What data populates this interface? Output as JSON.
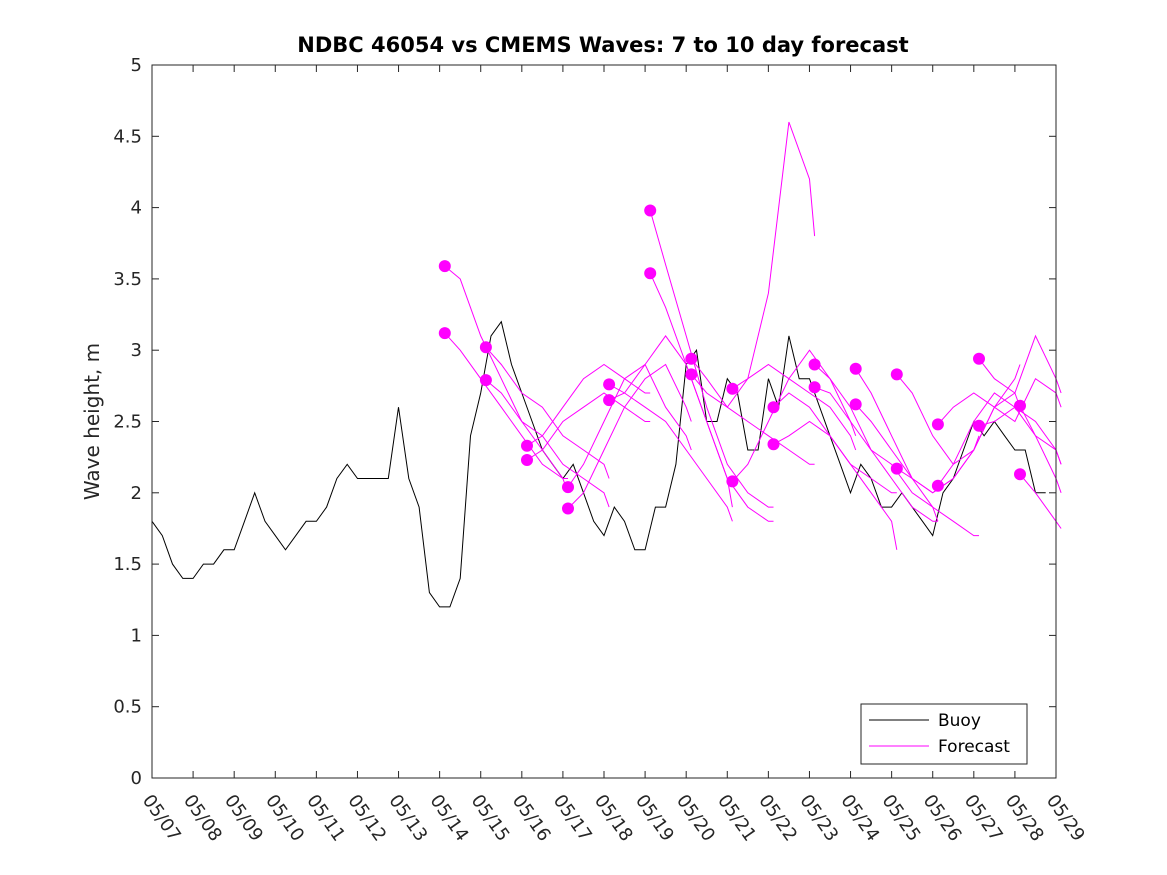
{
  "chart_data": {
    "type": "line",
    "title": "NDBC 46054 vs CMEMS Waves: 7 to 10 day forecast",
    "xlabel": "",
    "ylabel": "Wave height, m",
    "xlim": [
      "05/07",
      "05/29"
    ],
    "ylim": [
      0,
      5
    ],
    "x_tick_labels": [
      "05/07",
      "05/08",
      "05/09",
      "05/10",
      "05/11",
      "05/12",
      "05/13",
      "05/14",
      "05/15",
      "05/16",
      "05/17",
      "05/18",
      "05/19",
      "05/20",
      "05/21",
      "05/22",
      "05/23",
      "05/24",
      "05/25",
      "05/26",
      "05/27",
      "05/28",
      "05/29"
    ],
    "y_ticks": [
      0,
      0.5,
      1,
      1.5,
      2,
      2.5,
      3,
      3.5,
      4,
      4.5,
      5
    ],
    "y_tick_labels": [
      "0",
      "0.5",
      "1",
      "1.5",
      "2",
      "2.5",
      "3",
      "3.5",
      "4",
      "4.5",
      "5"
    ],
    "grid": false,
    "legend": {
      "position": "bottom-right",
      "entries": [
        "Buoy",
        "Forecast"
      ]
    },
    "colors": {
      "buoy": "#000000",
      "forecast": "#ff00ff"
    },
    "series": [
      {
        "name": "Buoy",
        "x": [
          "05/07 00:00",
          "05/07 06:00",
          "05/07 12:00",
          "05/07 18:00",
          "05/08 00:00",
          "05/08 06:00",
          "05/08 12:00",
          "05/08 18:00",
          "05/09 00:00",
          "05/09 06:00",
          "05/09 12:00",
          "05/09 18:00",
          "05/10 00:00",
          "05/10 06:00",
          "05/10 12:00",
          "05/10 18:00",
          "05/11 00:00",
          "05/11 06:00",
          "05/11 12:00",
          "05/11 18:00",
          "05/12 00:00",
          "05/12 06:00",
          "05/12 12:00",
          "05/12 18:00",
          "05/13 00:00",
          "05/13 06:00",
          "05/13 12:00",
          "05/13 18:00",
          "05/14 00:00",
          "05/14 06:00",
          "05/14 12:00",
          "05/14 18:00",
          "05/15 00:00",
          "05/15 06:00",
          "05/15 12:00",
          "05/15 18:00",
          "05/16 00:00",
          "05/16 06:00",
          "05/16 12:00",
          "05/16 18:00",
          "05/17 00:00",
          "05/17 06:00",
          "05/17 12:00",
          "05/17 18:00",
          "05/18 00:00",
          "05/18 06:00",
          "05/18 12:00",
          "05/18 18:00",
          "05/19 00:00",
          "05/19 06:00",
          "05/19 12:00",
          "05/19 18:00",
          "05/20 00:00",
          "05/20 06:00",
          "05/20 12:00",
          "05/20 18:00",
          "05/21 00:00",
          "05/21 06:00",
          "05/21 12:00",
          "05/21 18:00",
          "05/22 00:00",
          "05/22 06:00",
          "05/22 12:00",
          "05/22 18:00",
          "05/23 00:00",
          "05/23 06:00",
          "05/23 12:00",
          "05/23 18:00",
          "05/24 00:00",
          "05/24 06:00",
          "05/24 12:00",
          "05/24 18:00",
          "05/25 00:00",
          "05/25 06:00",
          "05/25 12:00",
          "05/25 18:00",
          "05/26 00:00",
          "05/26 06:00",
          "05/26 12:00",
          "05/26 18:00",
          "05/27 00:00",
          "05/27 06:00",
          "05/27 12:00",
          "05/27 18:00",
          "05/28 00:00",
          "05/28 06:00",
          "05/28 12:00",
          "05/28 18:00"
        ],
        "y": [
          1.8,
          1.7,
          1.5,
          1.4,
          1.4,
          1.5,
          1.5,
          1.6,
          1.6,
          1.8,
          2.0,
          1.8,
          1.7,
          1.6,
          1.7,
          1.8,
          1.8,
          1.9,
          2.1,
          2.2,
          2.1,
          2.1,
          2.1,
          2.1,
          2.6,
          2.1,
          1.9,
          1.3,
          1.2,
          1.2,
          1.4,
          2.4,
          2.7,
          3.1,
          3.2,
          2.9,
          2.7,
          2.5,
          2.3,
          2.2,
          2.1,
          2.2,
          2.0,
          1.8,
          1.7,
          1.9,
          1.8,
          1.6,
          1.6,
          1.9,
          1.9,
          2.2,
          2.9,
          3.0,
          2.5,
          2.5,
          2.8,
          2.7,
          2.3,
          2.3,
          2.8,
          2.6,
          3.1,
          2.8,
          2.8,
          2.6,
          2.4,
          2.2,
          2.0,
          2.2,
          2.1,
          1.9,
          1.9,
          2.0,
          1.9,
          1.8,
          1.7,
          2.0,
          2.1,
          2.3,
          2.5,
          2.4,
          2.5,
          2.4,
          2.3,
          2.3,
          2.0,
          2.0
        ]
      },
      {
        "name": "Forecast",
        "runs": [
          {
            "x": [
              "05/14 03:00",
              "05/14 12:00",
              "05/15 00:00",
              "05/15 12:00",
              "05/16 00:00",
              "05/16 12:00",
              "05/17 00:00",
              "05/17 03:00"
            ],
            "y": [
              3.59,
              3.5,
              3.1,
              2.8,
              2.5,
              2.3,
              2.1,
              2.0
            ]
          },
          {
            "x": [
              "05/14 03:00",
              "05/14 12:00",
              "05/15 00:00",
              "05/15 12:00",
              "05/16 00:00",
              "05/16 12:00",
              "05/17 00:00",
              "05/17 03:00"
            ],
            "y": [
              3.12,
              3.0,
              2.8,
              2.6,
              2.4,
              2.2,
              2.1,
              2.1
            ]
          },
          {
            "x": [
              "05/15 03:00",
              "05/15 12:00",
              "05/16 00:00",
              "05/16 12:00",
              "05/17 00:00",
              "05/17 12:00",
              "05/18 00:00",
              "05/18 03:00"
            ],
            "y": [
              3.02,
              2.9,
              2.7,
              2.6,
              2.4,
              2.3,
              2.2,
              2.1
            ]
          },
          {
            "x": [
              "05/15 03:00",
              "05/15 12:00",
              "05/16 00:00",
              "05/16 12:00",
              "05/17 00:00",
              "05/17 12:00",
              "05/18 00:00",
              "05/18 03:00"
            ],
            "y": [
              2.79,
              2.7,
              2.5,
              2.4,
              2.2,
              2.1,
              2.0,
              1.9
            ]
          },
          {
            "x": [
              "05/16 03:00",
              "05/16 12:00",
              "05/17 00:00",
              "05/17 12:00",
              "05/18 00:00",
              "05/18 12:00",
              "05/19 00:00",
              "05/19 03:00"
            ],
            "y": [
              2.33,
              2.4,
              2.6,
              2.8,
              2.9,
              2.8,
              2.7,
              2.7
            ]
          },
          {
            "x": [
              "05/16 03:00",
              "05/16 12:00",
              "05/17 00:00",
              "05/17 12:00",
              "05/18 00:00",
              "05/18 12:00",
              "05/19 00:00",
              "05/19 03:00"
            ],
            "y": [
              2.23,
              2.3,
              2.5,
              2.6,
              2.7,
              2.6,
              2.5,
              2.5
            ]
          },
          {
            "x": [
              "05/17 03:00",
              "05/17 12:00",
              "05/18 00:00",
              "05/18 12:00",
              "05/19 00:00",
              "05/19 12:00",
              "05/20 00:00",
              "05/20 03:00"
            ],
            "y": [
              2.04,
              2.2,
              2.5,
              2.8,
              2.9,
              2.6,
              2.4,
              2.3
            ]
          },
          {
            "x": [
              "05/17 03:00",
              "05/17 12:00",
              "05/18 00:00",
              "05/18 12:00",
              "05/19 00:00",
              "05/19 12:00",
              "05/20 00:00",
              "05/20 03:00"
            ],
            "y": [
              1.89,
              2.0,
              2.3,
              2.6,
              2.8,
              2.9,
              2.6,
              2.5
            ]
          },
          {
            "x": [
              "05/18 03:00",
              "05/18 12:00",
              "05/19 00:00",
              "05/19 12:00",
              "05/20 00:00",
              "05/20 12:00",
              "05/21 00:00",
              "05/21 03:00"
            ],
            "y": [
              2.76,
              2.7,
              2.6,
              2.5,
              2.3,
              2.1,
              1.9,
              1.8
            ]
          },
          {
            "x": [
              "05/18 03:00",
              "05/18 12:00",
              "05/19 00:00",
              "05/19 12:00",
              "05/20 00:00",
              "05/20 12:00",
              "05/21 00:00",
              "05/21 03:00"
            ],
            "y": [
              2.65,
              2.7,
              2.9,
              3.1,
              2.9,
              2.5,
              2.1,
              1.9
            ]
          },
          {
            "x": [
              "05/19 03:00",
              "05/19 12:00",
              "05/20 00:00",
              "05/20 12:00",
              "05/21 00:00",
              "05/21 12:00",
              "05/22 00:00",
              "05/22 03:00"
            ],
            "y": [
              3.98,
              3.6,
              3.1,
              2.6,
              2.2,
              2.0,
              1.9,
              1.9
            ]
          },
          {
            "x": [
              "05/19 03:00",
              "05/19 12:00",
              "05/20 00:00",
              "05/20 12:00",
              "05/21 00:00",
              "05/21 12:00",
              "05/22 00:00",
              "05/22 03:00"
            ],
            "y": [
              3.54,
              3.3,
              2.9,
              2.5,
              2.1,
              1.9,
              1.8,
              1.8
            ]
          },
          {
            "x": [
              "05/20 03:00",
              "05/20 12:00",
              "05/21 00:00",
              "05/21 12:00",
              "05/22 00:00",
              "05/22 12:00",
              "05/23 00:00",
              "05/23 03:00"
            ],
            "y": [
              2.94,
              2.8,
              2.6,
              2.8,
              3.4,
              4.6,
              4.2,
              3.8
            ]
          },
          {
            "x": [
              "05/20 03:00",
              "05/20 12:00",
              "05/21 00:00",
              "05/21 12:00",
              "05/22 00:00",
              "05/22 12:00",
              "05/23 00:00",
              "05/23 03:00"
            ],
            "y": [
              2.83,
              2.7,
              2.6,
              2.5,
              2.4,
              2.3,
              2.2,
              2.2
            ]
          },
          {
            "x": [
              "05/21 03:00",
              "05/21 12:00",
              "05/22 00:00",
              "05/22 12:00",
              "05/23 00:00",
              "05/23 12:00",
              "05/24 00:00",
              "05/24 03:00"
            ],
            "y": [
              2.73,
              2.8,
              2.9,
              2.8,
              2.7,
              2.6,
              2.4,
              2.3
            ]
          },
          {
            "x": [
              "05/21 03:00",
              "05/21 12:00",
              "05/22 00:00",
              "05/22 12:00",
              "05/23 00:00",
              "05/23 12:00",
              "05/24 00:00",
              "05/24 03:00"
            ],
            "y": [
              2.08,
              2.2,
              2.5,
              2.8,
              3.0,
              2.8,
              2.5,
              2.4
            ]
          },
          {
            "x": [
              "05/22 03:00",
              "05/22 12:00",
              "05/23 00:00",
              "05/23 12:00",
              "05/24 00:00",
              "05/24 12:00",
              "05/25 00:00",
              "05/25 03:00"
            ],
            "y": [
              2.6,
              2.7,
              2.6,
              2.4,
              2.2,
              2.0,
              1.8,
              1.6
            ]
          },
          {
            "x": [
              "05/22 03:00",
              "05/22 12:00",
              "05/23 00:00",
              "05/23 12:00",
              "05/24 00:00",
              "05/24 12:00",
              "05/25 00:00",
              "05/25 03:00"
            ],
            "y": [
              2.34,
              2.4,
              2.5,
              2.4,
              2.2,
              2.1,
              2.0,
              2.0
            ]
          },
          {
            "x": [
              "05/23 03:00",
              "05/23 12:00",
              "05/24 00:00",
              "05/24 12:00",
              "05/25 00:00",
              "05/25 12:00",
              "05/26 00:00",
              "05/26 03:00"
            ],
            "y": [
              2.9,
              2.8,
              2.6,
              2.3,
              2.1,
              1.9,
              1.8,
              1.8
            ]
          },
          {
            "x": [
              "05/23 03:00",
              "05/23 12:00",
              "05/24 00:00",
              "05/24 12:00",
              "05/25 00:00",
              "05/25 12:00",
              "05/26 00:00",
              "05/26 03:00"
            ],
            "y": [
              2.74,
              2.7,
              2.5,
              2.3,
              2.2,
              2.0,
              1.9,
              1.8
            ]
          },
          {
            "x": [
              "05/24 03:00",
              "05/24 12:00",
              "05/25 00:00",
              "05/25 12:00",
              "05/26 00:00",
              "05/26 12:00",
              "05/27 00:00",
              "05/27 03:00"
            ],
            "y": [
              2.87,
              2.7,
              2.4,
              2.1,
              1.9,
              1.8,
              1.7,
              1.7
            ]
          },
          {
            "x": [
              "05/24 03:00",
              "05/24 12:00",
              "05/25 00:00",
              "05/25 12:00",
              "05/26 00:00",
              "05/26 12:00",
              "05/27 00:00",
              "05/27 03:00"
            ],
            "y": [
              2.62,
              2.5,
              2.3,
              2.1,
              2.0,
              2.1,
              2.3,
              2.4
            ]
          },
          {
            "x": [
              "05/25 03:00",
              "05/25 12:00",
              "05/26 00:00",
              "05/26 12:00",
              "05/27 00:00",
              "05/27 12:00",
              "05/28 00:00",
              "05/28 03:00"
            ],
            "y": [
              2.83,
              2.7,
              2.4,
              2.2,
              2.3,
              2.6,
              2.8,
              2.9
            ]
          },
          {
            "x": [
              "05/25 03:00",
              "05/25 12:00",
              "05/26 00:00",
              "05/26 12:00",
              "05/27 00:00",
              "05/27 12:00",
              "05/28 00:00",
              "05/28 03:00"
            ],
            "y": [
              2.17,
              2.1,
              2.0,
              2.1,
              2.3,
              2.6,
              2.7,
              2.6
            ]
          },
          {
            "x": [
              "05/26 03:00",
              "05/26 12:00",
              "05/27 00:00",
              "05/27 12:00",
              "05/28 00:00",
              "05/28 12:00",
              "05/29 00:00",
              "05/29 03:00"
            ],
            "y": [
              2.48,
              2.6,
              2.7,
              2.6,
              2.5,
              2.8,
              2.7,
              2.6
            ]
          },
          {
            "x": [
              "05/26 03:00",
              "05/26 12:00",
              "05/27 00:00",
              "05/27 12:00",
              "05/28 00:00",
              "05/28 12:00",
              "05/29 00:00",
              "05/29 03:00"
            ],
            "y": [
              2.05,
              2.2,
              2.5,
              2.7,
              2.6,
              2.4,
              2.3,
              2.2
            ]
          },
          {
            "x": [
              "05/27 03:00",
              "05/27 12:00",
              "05/28 00:00",
              "05/28 12:00",
              "05/29 00:00",
              "05/29 03:00"
            ],
            "y": [
              2.94,
              2.8,
              2.7,
              3.1,
              2.8,
              2.7
            ]
          },
          {
            "x": [
              "05/27 03:00",
              "05/27 12:00",
              "05/28 00:00",
              "05/28 12:00",
              "05/29 00:00",
              "05/29 03:00"
            ],
            "y": [
              2.47,
              2.5,
              2.6,
              2.5,
              2.3,
              2.2
            ]
          },
          {
            "x": [
              "05/28 03:00",
              "05/28 12:00",
              "05/29 00:00",
              "05/29 03:00"
            ],
            "y": [
              2.61,
              2.4,
              2.1,
              2.0
            ]
          },
          {
            "x": [
              "05/28 03:00",
              "05/28 12:00",
              "05/29 00:00",
              "05/29 03:00"
            ],
            "y": [
              2.13,
              2.0,
              1.8,
              1.75
            ]
          }
        ]
      }
    ]
  }
}
